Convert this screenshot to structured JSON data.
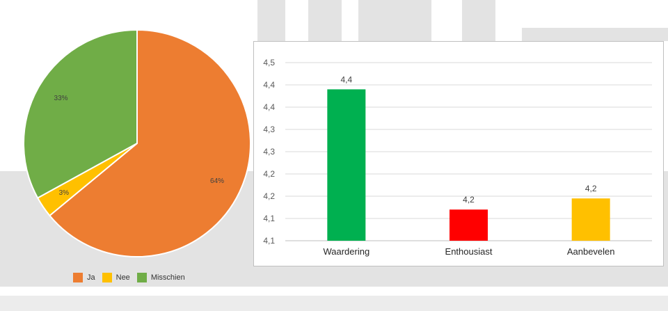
{
  "colors": {
    "ja": "#ed7d31",
    "nee": "#ffc000",
    "misschien": "#70ad47",
    "waardering": "#00b050",
    "enthousiast": "#ff0000",
    "aanbevelen": "#ffc000"
  },
  "chart_data": [
    {
      "type": "pie",
      "slices": [
        {
          "label": "Ja",
          "value": 64,
          "text": "64%",
          "color_key": "ja"
        },
        {
          "label": "Nee",
          "value": 3,
          "text": "3%",
          "color_key": "nee"
        },
        {
          "label": "Misschien",
          "value": 33,
          "text": "33%",
          "color_key": "misschien"
        }
      ],
      "legend": [
        "Ja",
        "Nee",
        "Misschien"
      ],
      "legend_position": "bottom"
    },
    {
      "type": "bar",
      "categories": [
        "Waardering",
        "Enthousiast",
        "Aanbevelen"
      ],
      "values": [
        4.44,
        4.17,
        4.195
      ],
      "data_labels": [
        "4,4",
        "4,2",
        "4,2"
      ],
      "color_keys": [
        "waardering",
        "enthousiast",
        "aanbevelen"
      ],
      "ylim": [
        4.1,
        4.5
      ],
      "y_ticks": [
        {
          "value": 4.1,
          "label": "4,1"
        },
        {
          "value": 4.15,
          "label": "4,1"
        },
        {
          "value": 4.2,
          "label": "4,2"
        },
        {
          "value": 4.25,
          "label": "4,2"
        },
        {
          "value": 4.3,
          "label": "4,3"
        },
        {
          "value": 4.35,
          "label": "4,3"
        },
        {
          "value": 4.4,
          "label": "4,4"
        },
        {
          "value": 4.45,
          "label": "4,4"
        },
        {
          "value": 4.5,
          "label": "4,5"
        }
      ],
      "grid": true,
      "legend": false
    }
  ]
}
